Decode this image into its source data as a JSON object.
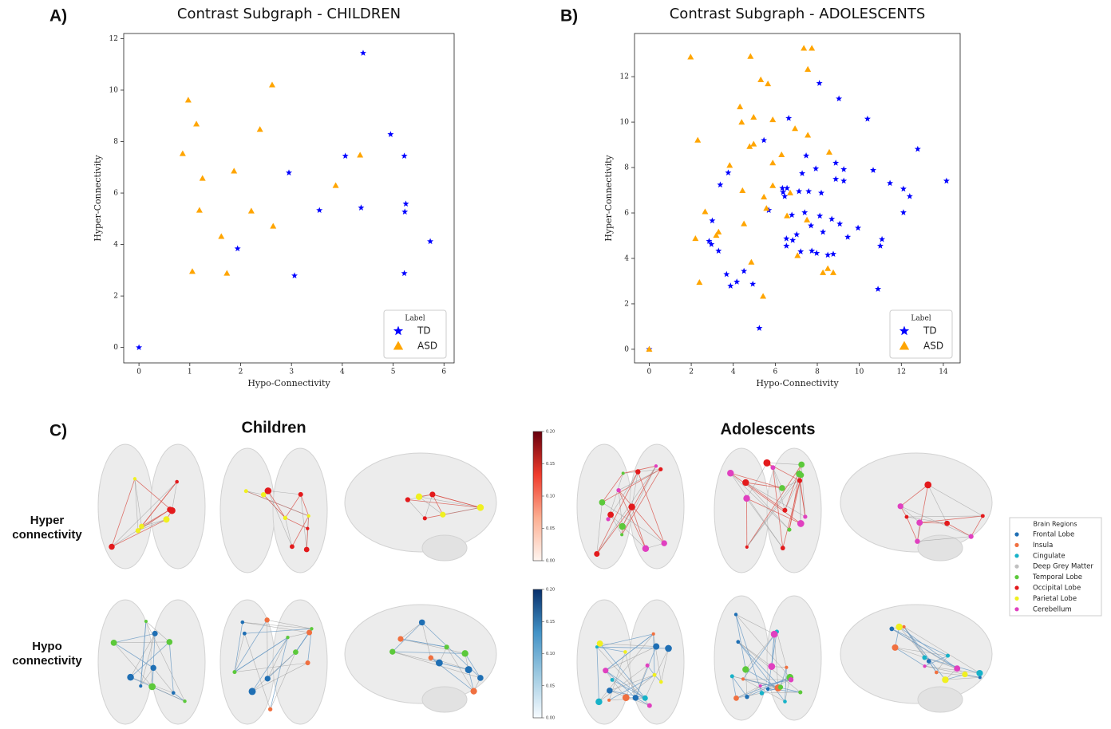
{
  "chart_data": [
    {
      "type": "scatter",
      "panel_label": "A)",
      "title": "Contrast Subgraph - CHILDREN",
      "x_label": "Hypo-Connectivity",
      "y_label": "Hyper-Connectivity",
      "xlim": [
        -0.3,
        6.2
      ],
      "ylim": [
        -0.6,
        12.2
      ],
      "xticks": [
        0,
        1,
        2,
        3,
        4,
        5,
        6
      ],
      "yticks": [
        0,
        2,
        4,
        6,
        8,
        10,
        12
      ],
      "legend_title": "Label",
      "legend_position": "lower right",
      "series": [
        {
          "name": "TD",
          "color": "#0000ff",
          "marker": "star",
          "x": [
            0,
            4.41,
            4.95,
            4.06,
            5.22,
            2.95,
            5.25,
            5.23,
            3.55,
            4.37,
            1.94,
            5.73,
            3.06,
            5.22
          ],
          "y": [
            0,
            11.44,
            8.28,
            7.44,
            7.44,
            6.79,
            5.58,
            5.27,
            5.33,
            5.43,
            3.84,
            4.12,
            2.79,
            2.88
          ]
        },
        {
          "name": "ASD",
          "color": "#ffa500",
          "marker": "triangle",
          "x": [
            0.86,
            0.97,
            1.13,
            1.25,
            1.19,
            1.05,
            1.62,
            1.73,
            1.87,
            2.21,
            2.38,
            2.62,
            2.64,
            3.87,
            4.35
          ],
          "y": [
            7.53,
            9.61,
            8.68,
            6.57,
            5.33,
            2.95,
            4.31,
            2.88,
            6.85,
            5.3,
            8.47,
            10.2,
            4.71,
            6.29,
            7.47
          ]
        }
      ]
    },
    {
      "type": "scatter",
      "panel_label": "B)",
      "title": "Contrast Subgraph - ADOLESCENTS",
      "x_label": "Hypo-Connectivity",
      "y_label": "Hyper-Connectivity",
      "xlim": [
        -0.7,
        14.8
      ],
      "ylim": [
        -0.6,
        13.9
      ],
      "xticks": [
        0,
        2,
        4,
        6,
        8,
        10,
        12,
        14
      ],
      "yticks": [
        0,
        2,
        4,
        6,
        8,
        10,
        12
      ],
      "legend_title": "Label",
      "legend_position": "lower right",
      "series": [
        {
          "name": "TD",
          "color": "#0000ff",
          "marker": "star",
          "x": [
            0,
            8.1,
            9.03,
            10.39,
            6.64,
            5.46,
            12.78,
            7.47,
            8.88,
            3.76,
            7.28,
            7.93,
            9.26,
            10.66,
            8.88,
            9.26,
            11.46,
            14.15,
            3.38,
            12.1,
            6.34,
            6.56,
            7.13,
            7.59,
            8.19,
            12.4,
            6.37,
            6.45,
            5.69,
            12.1,
            7.4,
            6.79,
            8.12,
            3.0,
            8.69,
            9.07,
            9.94,
            7.7,
            7.02,
            8.27,
            9.45,
            6.53,
            6.83,
            2.85,
            2.96,
            6.53,
            11.08,
            11.0,
            3.3,
            7.74,
            7.21,
            7.97,
            8.5,
            8.76,
            4.51,
            3.68,
            4.17,
            3.87,
            4.93,
            10.89,
            5.24
          ],
          "y": [
            0,
            11.71,
            11.03,
            10.14,
            10.17,
            9.2,
            8.81,
            8.52,
            8.2,
            7.77,
            7.74,
            7.95,
            7.92,
            7.88,
            7.49,
            7.41,
            7.31,
            7.41,
            7.24,
            7.06,
            7.09,
            7.09,
            6.95,
            6.95,
            6.88,
            6.73,
            6.91,
            6.73,
            6.12,
            6.02,
            6.02,
            5.91,
            5.87,
            5.66,
            5.73,
            5.52,
            5.34,
            5.44,
            5.05,
            5.16,
            4.94,
            4.87,
            4.8,
            4.76,
            4.62,
            4.55,
            4.84,
            4.55,
            4.33,
            4.33,
            4.3,
            4.23,
            4.15,
            4.19,
            3.44,
            3.3,
            2.97,
            2.79,
            2.87,
            2.65,
            0.93
          ]
        },
        {
          "name": "ASD",
          "color": "#ffa500",
          "marker": "triangle",
          "x": [
            0,
            7.36,
            7.74,
            1.97,
            4.82,
            7.55,
            5.31,
            5.65,
            4.32,
            4.97,
            5.88,
            4.4,
            6.94,
            7.55,
            2.31,
            4.97,
            4.78,
            8.57,
            6.3,
            5.88,
            3.83,
            5.88,
            4.44,
            5.46,
            6.71,
            5.58,
            6.56,
            2.66,
            7.51,
            3.3,
            3.19,
            4.51,
            2.2,
            7.06,
            4.86,
            8.5,
            8.27,
            8.76,
            2.39,
            5.42
          ],
          "y": [
            0,
            13.25,
            13.25,
            12.86,
            12.89,
            12.32,
            11.86,
            11.68,
            10.67,
            10.21,
            10.1,
            9.99,
            9.71,
            9.42,
            9.2,
            9.03,
            8.92,
            8.67,
            8.56,
            8.2,
            8.09,
            7.2,
            6.98,
            6.7,
            6.88,
            6.2,
            5.87,
            6.05,
            5.69,
            5.16,
            5.01,
            5.52,
            4.87,
            4.12,
            3.83,
            3.55,
            3.37,
            3.37,
            2.94,
            2.33
          ]
        }
      ]
    }
  ],
  "panel_c": {
    "label": "C)",
    "columns": [
      "Children",
      "Adolescents"
    ],
    "rows": [
      "Hyper connectivity",
      "Hypo connectivity"
    ],
    "colorbars": [
      {
        "lim": [
          0,
          0.2
        ],
        "colors": [
          "#fff5f0",
          "#fcae91",
          "#ef3b2c",
          "#67000d"
        ],
        "ticks": [
          {
            "value": 0,
            "label": "0.00"
          },
          {
            "value": 0.05,
            "label": "0.05"
          },
          {
            "value": 0.1,
            "label": "0.10"
          },
          {
            "value": 0.15,
            "label": "0.15"
          },
          {
            "value": 0.2,
            "label": "0.20"
          }
        ]
      },
      {
        "lim": [
          0,
          0.2
        ],
        "colors": [
          "#f7fbff",
          "#9ecae1",
          "#4292c6",
          "#08306b"
        ],
        "ticks": [
          {
            "value": 0,
            "label": "0.00"
          },
          {
            "value": 0.05,
            "label": "0.05"
          },
          {
            "value": 0.1,
            "label": "0.10"
          },
          {
            "value": 0.15,
            "label": "0.15"
          },
          {
            "value": 0.2,
            "label": "0.20"
          }
        ]
      }
    ],
    "legend": {
      "title": "Brain Regions",
      "items": [
        {
          "name": "Frontal Lobe",
          "color": "#1f6fb4"
        },
        {
          "name": "Insula",
          "color": "#f07040"
        },
        {
          "name": "Cingulate",
          "color": "#17b2c8"
        },
        {
          "name": "Deep Grey Matter",
          "color": "#c0c0c0"
        },
        {
          "name": "Temporal Lobe",
          "color": "#5cc93b"
        },
        {
          "name": "Occipital Lobe",
          "color": "#e31a1c"
        },
        {
          "name": "Parietal Lobe",
          "color": "#f0f020"
        },
        {
          "name": "Cerebellum",
          "color": "#e040c0"
        }
      ]
    }
  }
}
